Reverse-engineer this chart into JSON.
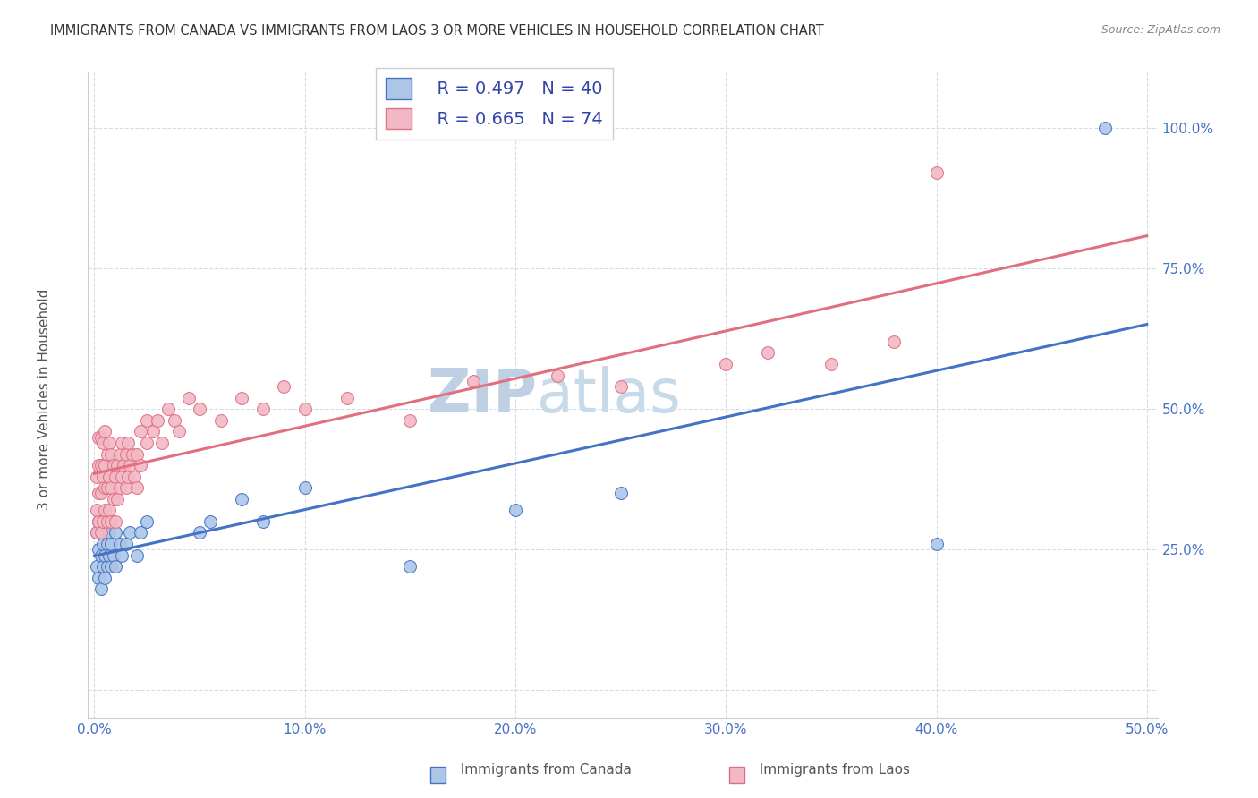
{
  "title": "IMMIGRANTS FROM CANADA VS IMMIGRANTS FROM LAOS 3 OR MORE VEHICLES IN HOUSEHOLD CORRELATION CHART",
  "source": "Source: ZipAtlas.com",
  "canada_R": 0.497,
  "canada_N": 40,
  "laos_R": 0.665,
  "laos_N": 74,
  "canada_color": "#adc6e8",
  "laos_color": "#f2b8c6",
  "canada_line_color": "#4472c4",
  "laos_line_color": "#e07080",
  "laos_line_dashed_color": "#e0a0b0",
  "watermark_zip": "ZIP",
  "watermark_atlas": "atlas",
  "watermark_color": "#c5d8ed",
  "xlim": [
    0.0,
    0.5
  ],
  "ylim": [
    -0.05,
    1.08
  ],
  "canada_x": [
    0.001,
    0.001,
    0.002,
    0.002,
    0.002,
    0.003,
    0.003,
    0.003,
    0.004,
    0.004,
    0.004,
    0.005,
    0.005,
    0.005,
    0.006,
    0.006,
    0.007,
    0.007,
    0.008,
    0.008,
    0.009,
    0.01,
    0.01,
    0.012,
    0.013,
    0.015,
    0.017,
    0.02,
    0.022,
    0.025,
    0.05,
    0.055,
    0.07,
    0.08,
    0.1,
    0.15,
    0.2,
    0.25,
    0.4,
    0.48
  ],
  "canada_y": [
    0.22,
    0.28,
    0.2,
    0.25,
    0.3,
    0.18,
    0.24,
    0.28,
    0.22,
    0.26,
    0.3,
    0.2,
    0.24,
    0.28,
    0.22,
    0.26,
    0.24,
    0.28,
    0.22,
    0.26,
    0.24,
    0.22,
    0.28,
    0.26,
    0.24,
    0.26,
    0.28,
    0.24,
    0.28,
    0.3,
    0.28,
    0.3,
    0.34,
    0.3,
    0.36,
    0.22,
    0.32,
    0.35,
    0.26,
    1.0
  ],
  "laos_x": [
    0.001,
    0.001,
    0.001,
    0.002,
    0.002,
    0.002,
    0.002,
    0.003,
    0.003,
    0.003,
    0.003,
    0.004,
    0.004,
    0.004,
    0.005,
    0.005,
    0.005,
    0.005,
    0.006,
    0.006,
    0.006,
    0.007,
    0.007,
    0.007,
    0.008,
    0.008,
    0.008,
    0.009,
    0.009,
    0.01,
    0.01,
    0.011,
    0.011,
    0.012,
    0.012,
    0.013,
    0.013,
    0.014,
    0.015,
    0.015,
    0.016,
    0.016,
    0.017,
    0.018,
    0.019,
    0.02,
    0.02,
    0.022,
    0.022,
    0.025,
    0.025,
    0.028,
    0.03,
    0.032,
    0.035,
    0.038,
    0.04,
    0.045,
    0.05,
    0.06,
    0.07,
    0.08,
    0.09,
    0.1,
    0.12,
    0.15,
    0.18,
    0.22,
    0.25,
    0.3,
    0.32,
    0.35,
    0.38,
    0.4
  ],
  "laos_y": [
    0.28,
    0.32,
    0.38,
    0.3,
    0.35,
    0.4,
    0.45,
    0.28,
    0.35,
    0.4,
    0.45,
    0.3,
    0.38,
    0.44,
    0.32,
    0.36,
    0.4,
    0.46,
    0.3,
    0.36,
    0.42,
    0.32,
    0.38,
    0.44,
    0.3,
    0.36,
    0.42,
    0.34,
    0.4,
    0.3,
    0.38,
    0.34,
    0.4,
    0.36,
    0.42,
    0.38,
    0.44,
    0.4,
    0.36,
    0.42,
    0.38,
    0.44,
    0.4,
    0.42,
    0.38,
    0.36,
    0.42,
    0.4,
    0.46,
    0.44,
    0.48,
    0.46,
    0.48,
    0.44,
    0.5,
    0.48,
    0.46,
    0.52,
    0.5,
    0.48,
    0.52,
    0.5,
    0.54,
    0.5,
    0.52,
    0.48,
    0.55,
    0.56,
    0.54,
    0.58,
    0.6,
    0.58,
    0.62,
    0.92
  ]
}
